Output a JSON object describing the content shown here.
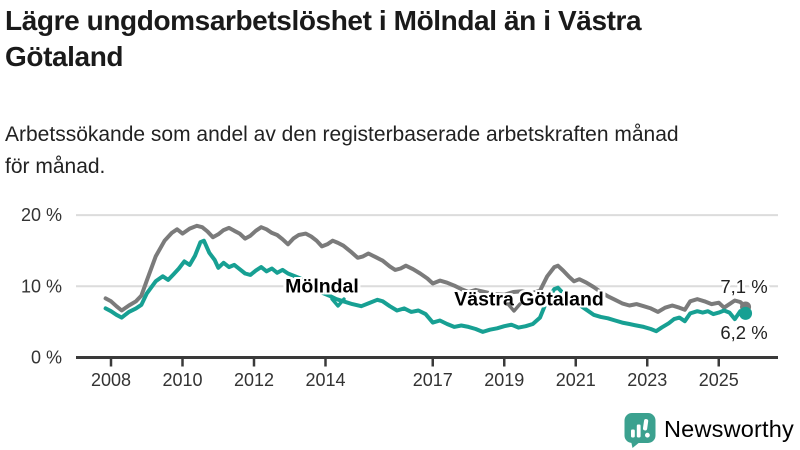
{
  "header": {
    "title": "Lägre ungdomsarbetslöshet i Mölndal än i Västra Götaland",
    "title_lines": [
      "Lägre ungdomsarbetslöshet i Mölndal än i Västra",
      "Götaland"
    ],
    "subtitle": "Arbetssökande som andel av den registerbaserade arbetskraften månad för månad.",
    "subtitle_lines": [
      "Arbetssökande som andel av den registerbaserade arbetskraften månad",
      "för månad."
    ]
  },
  "chart_data": {
    "type": "line",
    "unit": "%",
    "xlim": [
      2007.8,
      2026.3
    ],
    "ylim": [
      0,
      21
    ],
    "grid": "horizontal-only",
    "grid_color": "#DCDCDC",
    "axis_color": "#3A3A3A",
    "tick_text_color": "#333333",
    "x_ticks": [
      2008,
      2010,
      2012,
      2014,
      2017,
      2019,
      2021,
      2023,
      2025
    ],
    "y_ticks": [
      {
        "value": 0,
        "label": "0 %"
      },
      {
        "value": 10,
        "label": "10 %"
      },
      {
        "value": 20,
        "label": "20 %"
      }
    ],
    "series": [
      {
        "name": "Västra Götaland",
        "color": "#7B7B7B",
        "label_color": "#757575",
        "end_label": "7,1 %",
        "end_value": 7.1,
        "points": [
          [
            2007.85,
            8.3
          ],
          [
            2008.0,
            7.9
          ],
          [
            2008.15,
            7.2
          ],
          [
            2008.3,
            6.6
          ],
          [
            2008.5,
            7.3
          ],
          [
            2008.7,
            7.9
          ],
          [
            2008.85,
            8.7
          ],
          [
            2009.0,
            10.8
          ],
          [
            2009.25,
            14.2
          ],
          [
            2009.5,
            16.4
          ],
          [
            2009.7,
            17.5
          ],
          [
            2009.85,
            18.0
          ],
          [
            2010.0,
            17.4
          ],
          [
            2010.2,
            18.1
          ],
          [
            2010.4,
            18.5
          ],
          [
            2010.55,
            18.3
          ],
          [
            2010.7,
            17.7
          ],
          [
            2010.85,
            16.9
          ],
          [
            2011.0,
            17.3
          ],
          [
            2011.15,
            17.9
          ],
          [
            2011.3,
            18.2
          ],
          [
            2011.45,
            17.8
          ],
          [
            2011.6,
            17.4
          ],
          [
            2011.75,
            16.7
          ],
          [
            2011.9,
            17.1
          ],
          [
            2012.05,
            17.8
          ],
          [
            2012.2,
            18.3
          ],
          [
            2012.35,
            18.0
          ],
          [
            2012.5,
            17.5
          ],
          [
            2012.65,
            17.2
          ],
          [
            2012.8,
            16.6
          ],
          [
            2012.95,
            15.9
          ],
          [
            2013.1,
            16.7
          ],
          [
            2013.25,
            17.2
          ],
          [
            2013.45,
            17.4
          ],
          [
            2013.6,
            17.0
          ],
          [
            2013.75,
            16.4
          ],
          [
            2013.9,
            15.6
          ],
          [
            2014.05,
            15.9
          ],
          [
            2014.2,
            16.4
          ],
          [
            2014.35,
            16.1
          ],
          [
            2014.5,
            15.7
          ],
          [
            2014.7,
            14.9
          ],
          [
            2014.9,
            14.0
          ],
          [
            2015.05,
            14.2
          ],
          [
            2015.2,
            14.6
          ],
          [
            2015.4,
            14.1
          ],
          [
            2015.6,
            13.6
          ],
          [
            2015.8,
            12.8
          ],
          [
            2015.95,
            12.3
          ],
          [
            2016.1,
            12.5
          ],
          [
            2016.25,
            12.9
          ],
          [
            2016.45,
            12.4
          ],
          [
            2016.65,
            11.8
          ],
          [
            2016.85,
            11.1
          ],
          [
            2017.0,
            10.4
          ],
          [
            2017.2,
            10.8
          ],
          [
            2017.4,
            10.5
          ],
          [
            2017.6,
            10.1
          ],
          [
            2017.8,
            9.6
          ],
          [
            2018.0,
            9.2
          ],
          [
            2018.2,
            9.5
          ],
          [
            2018.45,
            9.2
          ],
          [
            2018.7,
            8.9
          ],
          [
            2019.0,
            8.8
          ],
          [
            2019.25,
            9.2
          ],
          [
            2019.5,
            9.3
          ],
          [
            2019.75,
            9.0
          ],
          [
            2020.0,
            9.4
          ],
          [
            2020.2,
            11.4
          ],
          [
            2020.4,
            12.7
          ],
          [
            2020.5,
            12.9
          ],
          [
            2020.65,
            12.2
          ],
          [
            2020.8,
            11.4
          ],
          [
            2020.95,
            10.7
          ],
          [
            2021.1,
            11.0
          ],
          [
            2021.3,
            10.5
          ],
          [
            2021.5,
            9.9
          ],
          [
            2021.7,
            9.2
          ],
          [
            2021.9,
            8.6
          ],
          [
            2022.1,
            8.1
          ],
          [
            2022.3,
            7.6
          ],
          [
            2022.5,
            7.3
          ],
          [
            2022.7,
            7.5
          ],
          [
            2022.9,
            7.2
          ],
          [
            2023.1,
            6.9
          ],
          [
            2023.3,
            6.4
          ],
          [
            2023.5,
            7.0
          ],
          [
            2023.7,
            7.3
          ],
          [
            2023.9,
            7.0
          ],
          [
            2024.05,
            6.7
          ],
          [
            2024.2,
            7.9
          ],
          [
            2024.4,
            8.2
          ],
          [
            2024.6,
            7.9
          ],
          [
            2024.8,
            7.5
          ],
          [
            2025.0,
            7.7
          ],
          [
            2025.15,
            7.0
          ],
          [
            2025.3,
            7.5
          ],
          [
            2025.45,
            8.0
          ],
          [
            2025.6,
            7.8
          ],
          [
            2025.75,
            7.1
          ]
        ]
      },
      {
        "name": "Mölndal",
        "color": "#17A093",
        "label_color": "#17A093",
        "end_label": "6,2 %",
        "end_value": 6.2,
        "points": [
          [
            2007.85,
            6.9
          ],
          [
            2008.0,
            6.5
          ],
          [
            2008.15,
            6.0
          ],
          [
            2008.3,
            5.6
          ],
          [
            2008.5,
            6.4
          ],
          [
            2008.7,
            6.9
          ],
          [
            2008.85,
            7.4
          ],
          [
            2009.0,
            9.0
          ],
          [
            2009.25,
            10.7
          ],
          [
            2009.45,
            11.4
          ],
          [
            2009.6,
            10.9
          ],
          [
            2009.75,
            11.7
          ],
          [
            2009.9,
            12.5
          ],
          [
            2010.05,
            13.5
          ],
          [
            2010.2,
            13.0
          ],
          [
            2010.35,
            14.3
          ],
          [
            2010.5,
            16.2
          ],
          [
            2010.6,
            16.4
          ],
          [
            2010.75,
            14.7
          ],
          [
            2010.9,
            13.7
          ],
          [
            2011.0,
            12.6
          ],
          [
            2011.15,
            13.3
          ],
          [
            2011.3,
            12.7
          ],
          [
            2011.45,
            13.0
          ],
          [
            2011.6,
            12.4
          ],
          [
            2011.75,
            11.8
          ],
          [
            2011.9,
            11.6
          ],
          [
            2012.05,
            12.2
          ],
          [
            2012.2,
            12.7
          ],
          [
            2012.35,
            12.1
          ],
          [
            2012.5,
            12.5
          ],
          [
            2012.65,
            11.9
          ],
          [
            2012.8,
            12.3
          ],
          [
            2012.95,
            11.8
          ],
          [
            2013.1,
            11.5
          ],
          [
            2013.3,
            11.1
          ],
          [
            2013.5,
            10.4
          ],
          [
            2013.7,
            9.7
          ],
          [
            2013.9,
            9.1
          ],
          [
            2014.1,
            8.7
          ],
          [
            2014.3,
            8.2
          ],
          [
            2014.5,
            7.9
          ],
          [
            2014.75,
            7.5
          ],
          [
            2015.0,
            7.2
          ],
          [
            2015.2,
            7.6
          ],
          [
            2015.45,
            8.1
          ],
          [
            2015.6,
            7.9
          ],
          [
            2015.8,
            7.2
          ],
          [
            2016.0,
            6.6
          ],
          [
            2016.2,
            6.9
          ],
          [
            2016.4,
            6.4
          ],
          [
            2016.6,
            6.6
          ],
          [
            2016.8,
            6.1
          ],
          [
            2017.0,
            4.9
          ],
          [
            2017.2,
            5.2
          ],
          [
            2017.4,
            4.7
          ],
          [
            2017.6,
            4.3
          ],
          [
            2017.8,
            4.5
          ],
          [
            2018.0,
            4.3
          ],
          [
            2018.2,
            4.0
          ],
          [
            2018.4,
            3.6
          ],
          [
            2018.6,
            3.9
          ],
          [
            2018.8,
            4.1
          ],
          [
            2019.0,
            4.4
          ],
          [
            2019.2,
            4.6
          ],
          [
            2019.4,
            4.2
          ],
          [
            2019.6,
            4.4
          ],
          [
            2019.8,
            4.7
          ],
          [
            2020.0,
            5.6
          ],
          [
            2020.2,
            8.1
          ],
          [
            2020.4,
            9.6
          ],
          [
            2020.5,
            9.8
          ],
          [
            2020.65,
            9.0
          ],
          [
            2020.8,
            8.0
          ],
          [
            2020.95,
            7.3
          ],
          [
            2021.1,
            7.4
          ],
          [
            2021.3,
            6.7
          ],
          [
            2021.5,
            6.0
          ],
          [
            2021.7,
            5.7
          ],
          [
            2021.9,
            5.5
          ],
          [
            2022.1,
            5.2
          ],
          [
            2022.3,
            4.9
          ],
          [
            2022.5,
            4.7
          ],
          [
            2022.7,
            4.5
          ],
          [
            2022.9,
            4.3
          ],
          [
            2023.1,
            4.0
          ],
          [
            2023.25,
            3.7
          ],
          [
            2023.4,
            4.2
          ],
          [
            2023.6,
            4.8
          ],
          [
            2023.75,
            5.4
          ],
          [
            2023.9,
            5.6
          ],
          [
            2024.05,
            5.1
          ],
          [
            2024.2,
            6.2
          ],
          [
            2024.4,
            6.5
          ],
          [
            2024.55,
            6.3
          ],
          [
            2024.7,
            6.5
          ],
          [
            2024.85,
            6.1
          ],
          [
            2025.0,
            6.3
          ],
          [
            2025.15,
            6.6
          ],
          [
            2025.3,
            6.3
          ],
          [
            2025.45,
            5.4
          ],
          [
            2025.6,
            6.5
          ],
          [
            2025.75,
            6.2
          ]
        ]
      }
    ]
  },
  "footer": {
    "brand": "Newsworthy",
    "brand_color": "#3BA18F"
  }
}
